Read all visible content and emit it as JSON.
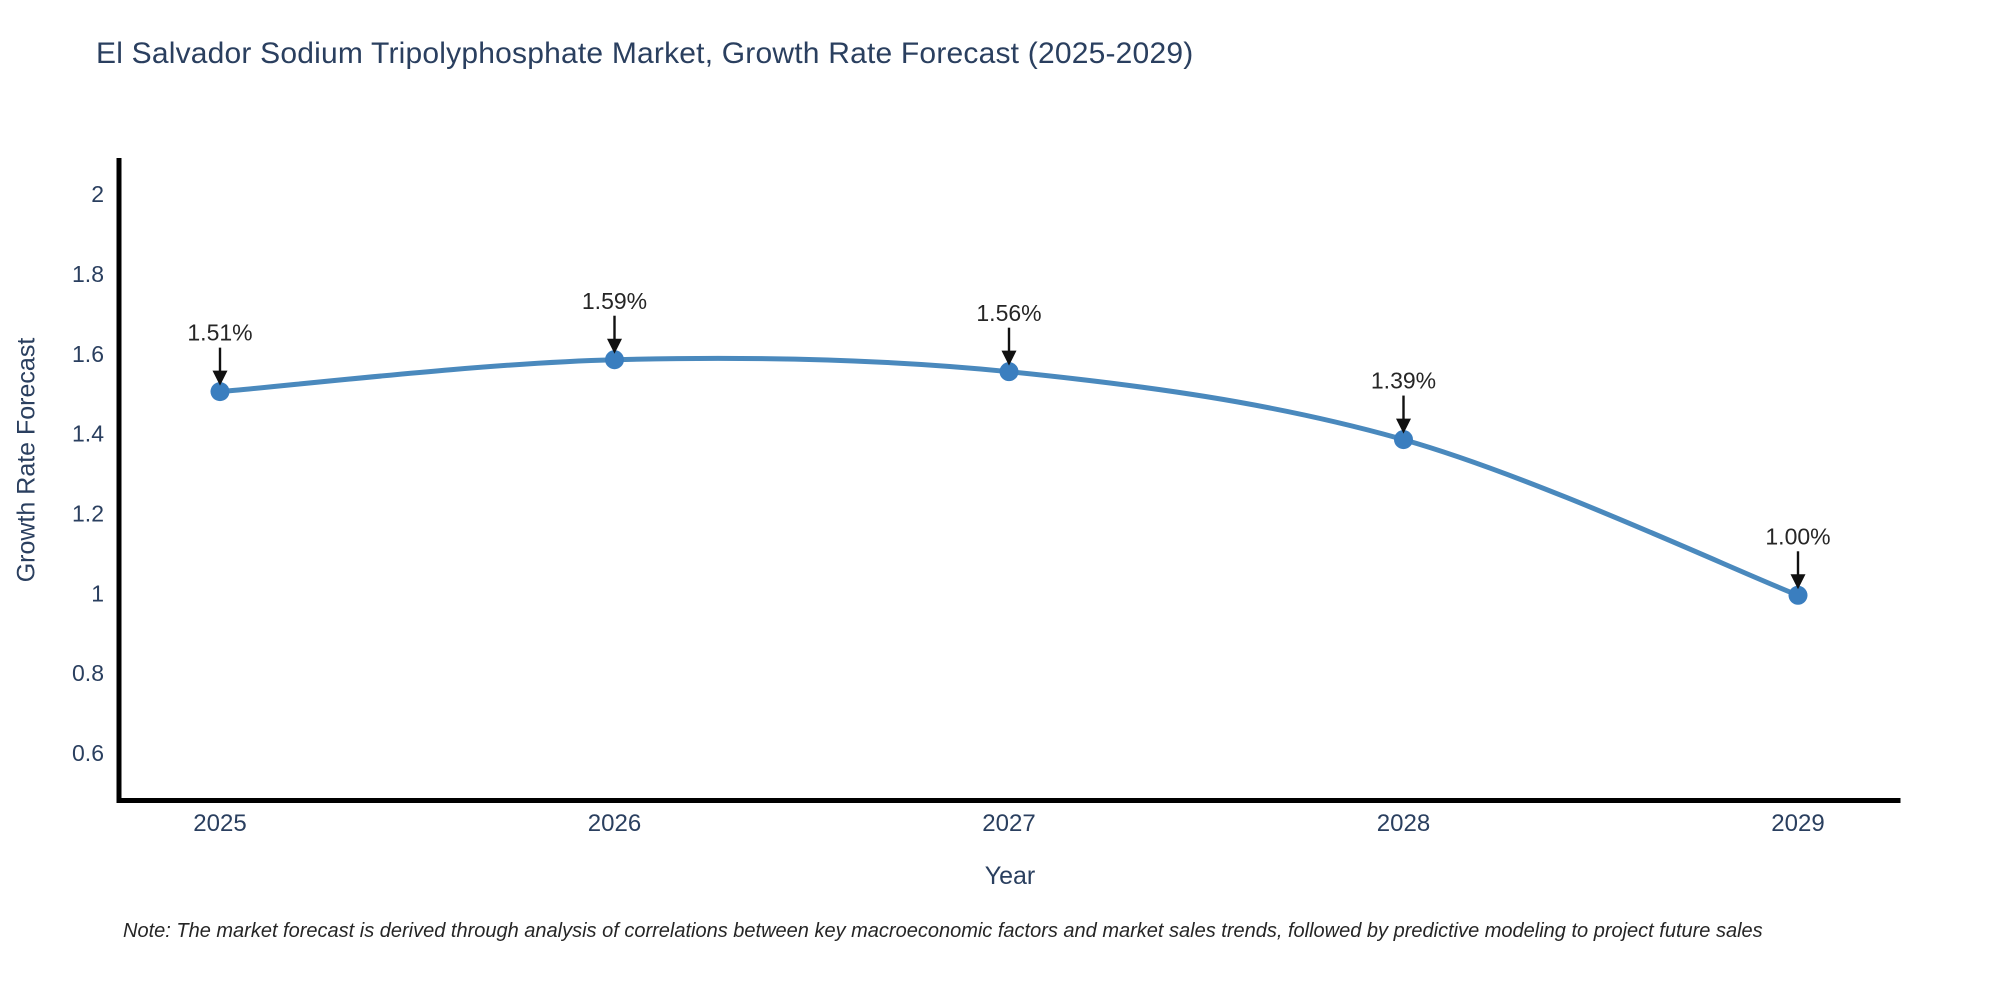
{
  "title": "El Salvador Sodium Tripolyphosphate Market, Growth Rate Forecast (2025-2029)",
  "note": "Note: The market forecast is derived through analysis of correlations between key macroeconomic factors and market sales trends, followed by predictive modeling to project future sales",
  "chart_data": {
    "type": "line",
    "title": "El Salvador Sodium Tripolyphosphate Market, Growth Rate Forecast (2025-2029)",
    "xlabel": "Year",
    "ylabel": "Growth Rate Forecast",
    "categories": [
      2025,
      2026,
      2027,
      2028,
      2029
    ],
    "values": [
      1.51,
      1.59,
      1.56,
      1.39,
      1.0
    ],
    "point_labels": [
      "1.51%",
      "1.59%",
      "1.56%",
      "1.39%",
      "1.00%"
    ],
    "xtick_labels": [
      "2025",
      "2026",
      "2027",
      "2028",
      "2029"
    ],
    "ytick_labels": [
      "2",
      "1.8",
      "1.6",
      "1.4",
      "1.2",
      "1",
      "0.8",
      "0.6"
    ],
    "ytick_values": [
      2,
      1.8,
      1.6,
      1.4,
      1.2,
      1,
      0.8,
      0.6
    ],
    "ylim": [
      0.49,
      2.1
    ],
    "grid": false,
    "legend": null,
    "line_color": "#4a89bd",
    "marker_color": "#3a7ebf",
    "axis_color": "#000000",
    "tick_color": "#2a3f5f",
    "annotation_color": "#262626",
    "arrow_color": "#111111"
  }
}
